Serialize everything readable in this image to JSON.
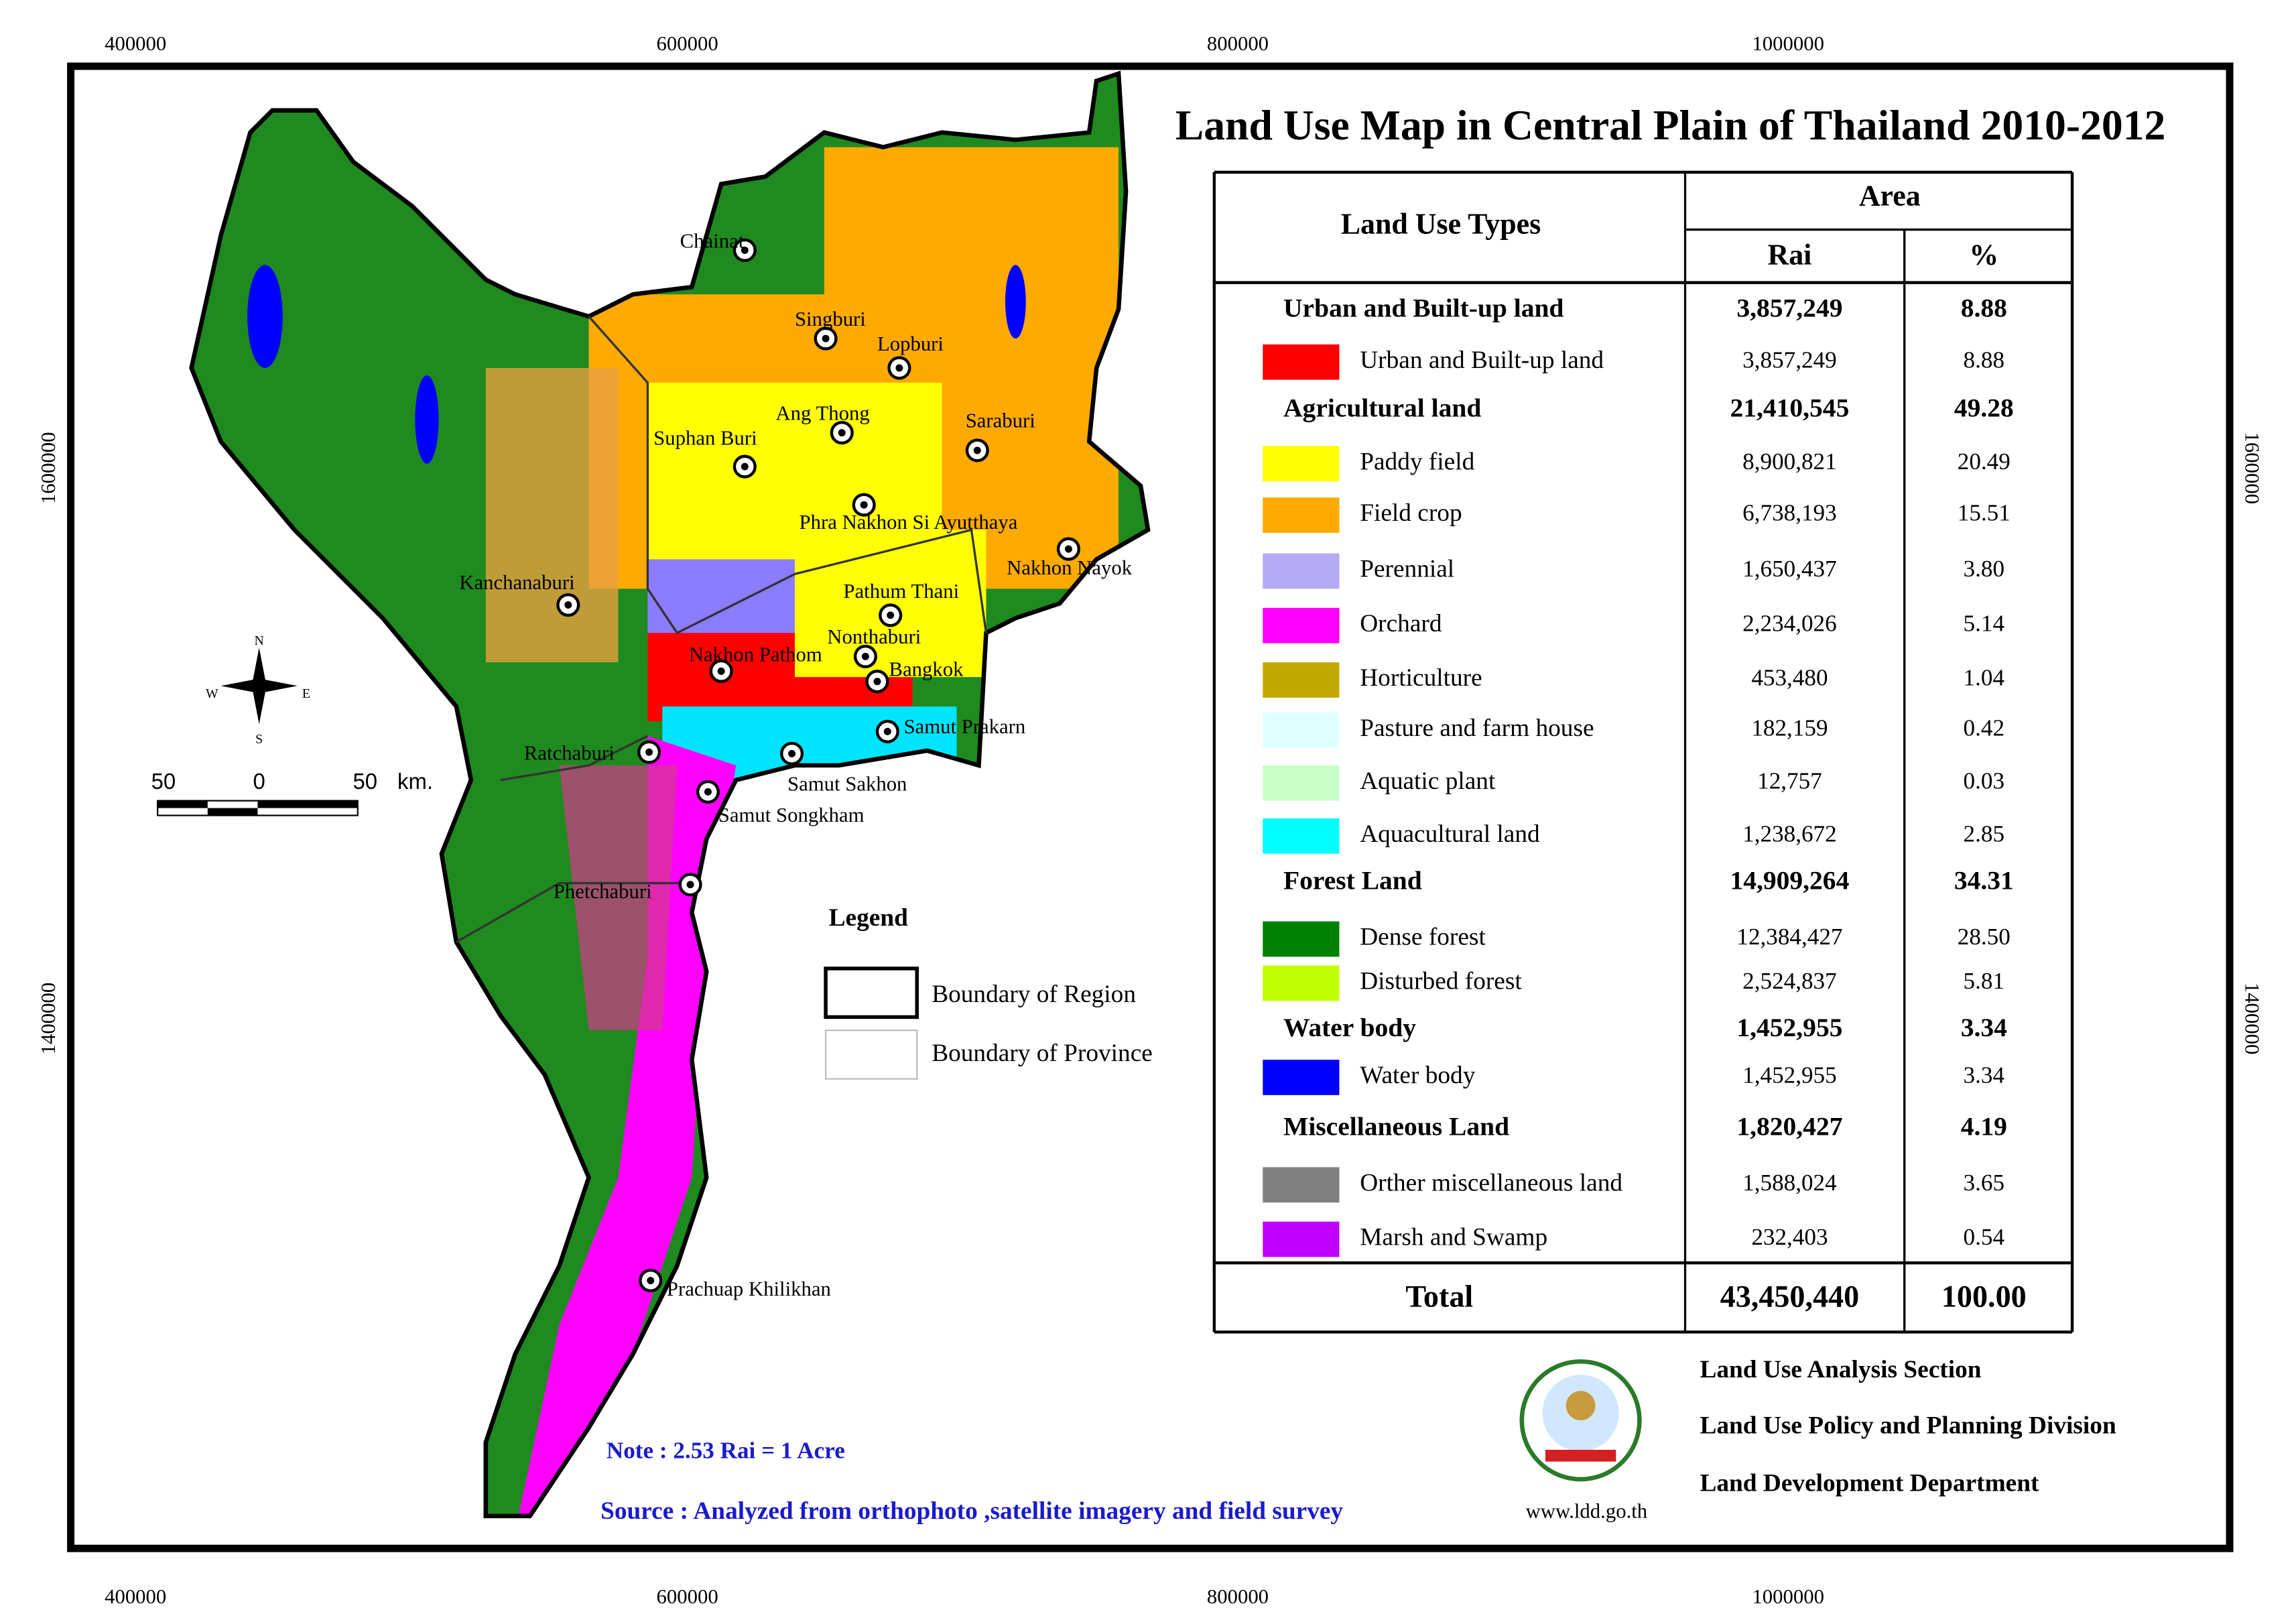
{
  "title": "Land Use Map in Central Plain of Thailand 2010-2012",
  "grid_labels": {
    "top": [
      "400000",
      "600000",
      "800000",
      "1000000"
    ],
    "bottom": [
      "400000",
      "600000",
      "800000",
      "1000000"
    ],
    "left": [
      "1600000",
      "1400000"
    ],
    "right": [
      "1600000",
      "1400000"
    ]
  },
  "provinces": [
    "Chainat",
    "Singburi",
    "Lopburi",
    "Ang Thong",
    "Saraburi",
    "Suphan Buri",
    "Phra Nakhon Si Ayutthaya",
    "Nakhon Nayok",
    "Kanchanaburi",
    "Pathum Thani",
    "Nonthaburi",
    "Nakhon Pathom",
    "Bangkok",
    "Samut Prakarn",
    "Ratchaburi",
    "Samut Sakhon",
    "Samut Songkham",
    "Phetchaburi",
    "Prachuap Khilikhan"
  ],
  "compass": {
    "n": "N",
    "e": "E",
    "s": "S",
    "w": "W"
  },
  "scale_bar": {
    "left": "50",
    "mid": "0",
    "right": "50",
    "unit": "km."
  },
  "legend": {
    "title": "Legend",
    "items": [
      "Boundary of Region",
      "Boundary of Province"
    ]
  },
  "table": {
    "header": {
      "types": "Land Use Types",
      "area": "Area",
      "rai": "Rai",
      "pct": "%"
    },
    "rows": [
      {
        "label": "Urban and Built-up land",
        "rai": "3,857,249",
        "pct": "8.88"
      },
      {
        "label": "Urban and Built-up land",
        "rai": "3,857,249",
        "pct": "8.88",
        "color": "#ff0000"
      },
      {
        "label": "Agricultural land",
        "rai": "21,410,545",
        "pct": "49.28"
      },
      {
        "label": "Paddy field",
        "rai": "8,900,821",
        "pct": "20.49",
        "color": "#ffff00"
      },
      {
        "label": "Field crop",
        "rai": "6,738,193",
        "pct": "15.51",
        "color": "#ffaa00"
      },
      {
        "label": "Perennial",
        "rai": "1,650,437",
        "pct": "3.80",
        "color": "#b4aaf5"
      },
      {
        "label": "Orchard",
        "rai": "2,234,026",
        "pct": "5.14",
        "color": "#ff00ff"
      },
      {
        "label": "Horticulture",
        "rai": "453,480",
        "pct": "1.04",
        "color": "#c0a800"
      },
      {
        "label": "Pasture and farm house",
        "rai": "182,159",
        "pct": "0.42",
        "color": "#e0ffff"
      },
      {
        "label": "Aquatic plant",
        "rai": "12,757",
        "pct": "0.03",
        "color": "#c8ffc8"
      },
      {
        "label": "Aquacultural land",
        "rai": "1,238,672",
        "pct": "2.85",
        "color": "#00ffff"
      },
      {
        "label": "Forest Land",
        "rai": "14,909,264",
        "pct": "34.31"
      },
      {
        "label": "Dense forest",
        "rai": "12,384,427",
        "pct": "28.50",
        "color": "#008000"
      },
      {
        "label": "Disturbed forest",
        "rai": "2,524,837",
        "pct": "5.81",
        "color": "#c0ff00"
      },
      {
        "label": "Water body",
        "rai": "1,452,955",
        "pct": "3.34"
      },
      {
        "label": "Water body",
        "rai": "1,452,955",
        "pct": "3.34",
        "color": "#0000ff"
      },
      {
        "label": "Miscellaneous Land",
        "rai": "1,820,427",
        "pct": "4.19"
      },
      {
        "label": "Orther miscellaneous land",
        "rai": "1,588,024",
        "pct": "3.65",
        "color": "#808080"
      },
      {
        "label": "Marsh and Swamp",
        "rai": "232,403",
        "pct": "0.54",
        "color": "#c000ff"
      }
    ],
    "total": {
      "label": "Total",
      "rai": "43,450,440",
      "pct": "100.00"
    }
  },
  "note": "Note : 2.53 Rai = 1 Acre",
  "source": "Source : Analyzed from orthophoto ,satellite imagery and field survey",
  "agency": [
    "Land Use Analysis Section",
    "Land Use Policy and Planning Division",
    "Land Development Department"
  ],
  "website": "www.ldd.go.th"
}
